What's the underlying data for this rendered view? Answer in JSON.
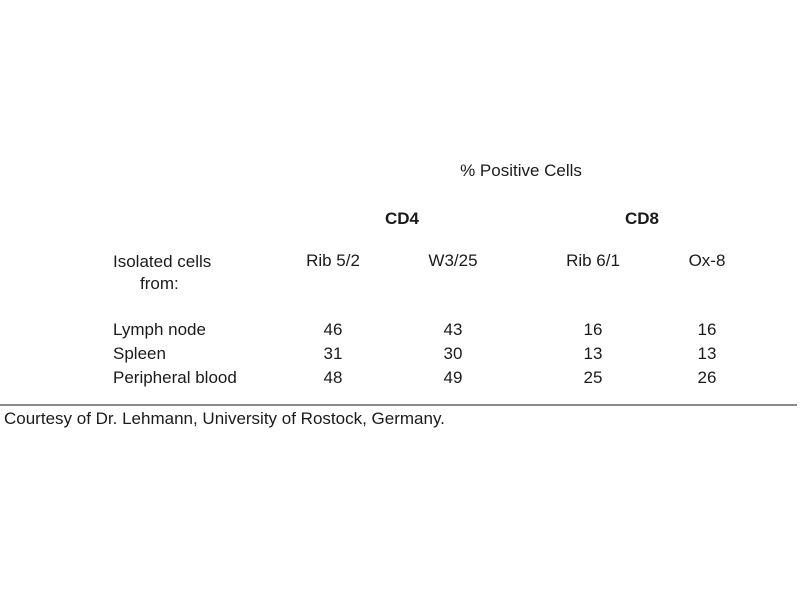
{
  "chart_data": {
    "type": "table",
    "title": "% Positive Cells",
    "column_groups": [
      {
        "label": "CD4",
        "columns": [
          "Rib 5/2",
          "W3/25"
        ]
      },
      {
        "label": "CD8",
        "columns": [
          "Rib 6/1",
          "Ox-8"
        ]
      }
    ],
    "row_header": [
      "Isolated cells",
      "from:"
    ],
    "columns": [
      "Rib 5/2",
      "W3/25",
      "Rib 6/1",
      "Ox-8"
    ],
    "rows": [
      {
        "label": "Lymph node",
        "values": [
          46,
          43,
          16,
          16
        ]
      },
      {
        "label": "Spleen",
        "values": [
          31,
          30,
          13,
          13
        ]
      },
      {
        "label": "Peripheral blood",
        "values": [
          48,
          49,
          25,
          26
        ]
      }
    ],
    "footnote": "Courtesy of Dr. Lehmann, University of Rostock, Germany."
  },
  "colors": {
    "background": "#ffffff",
    "text": "#1b1b1b",
    "divider": "#8a8a8a"
  }
}
